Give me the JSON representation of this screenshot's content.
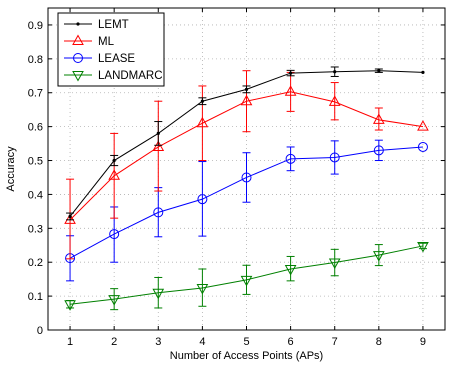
{
  "chart_data": {
    "type": "line",
    "title": "",
    "xlabel": "Number of Access Points (APs)",
    "ylabel": "Accuracy",
    "xlim": [
      0.5,
      9.5
    ],
    "ylim": [
      0,
      0.95
    ],
    "xticks": [
      1,
      2,
      3,
      4,
      5,
      6,
      7,
      8,
      9
    ],
    "yticks": [
      0,
      0.1,
      0.2,
      0.3,
      0.4,
      0.5,
      0.6,
      0.7,
      0.8,
      0.9
    ],
    "grid": true,
    "legend_position": "top-left",
    "x": [
      1,
      2,
      3,
      4,
      5,
      6,
      7,
      8,
      9
    ],
    "series": [
      {
        "name": "LEMT",
        "color": "#000000",
        "marker": "dot",
        "values": [
          0.335,
          0.5,
          0.58,
          0.675,
          0.71,
          0.758,
          0.762,
          0.765,
          0.76
        ],
        "err_low": [
          0.325,
          0.485,
          0.545,
          0.665,
          0.7,
          0.75,
          0.748,
          0.76,
          0.76
        ],
        "err_high": [
          0.345,
          0.515,
          0.615,
          0.685,
          0.72,
          0.766,
          0.776,
          0.77,
          0.76
        ]
      },
      {
        "name": "ML",
        "color": "#ff0000",
        "marker": "triangle-up",
        "values": [
          0.325,
          0.455,
          0.54,
          0.61,
          0.675,
          0.703,
          0.673,
          0.62,
          0.6
        ],
        "err_low": [
          0.21,
          0.33,
          0.41,
          0.5,
          0.585,
          0.645,
          0.62,
          0.59,
          0.6
        ],
        "err_high": [
          0.445,
          0.58,
          0.675,
          0.72,
          0.765,
          0.76,
          0.73,
          0.655,
          0.6
        ]
      },
      {
        "name": "LEASE",
        "color": "#0000ff",
        "marker": "circle",
        "values": [
          0.212,
          0.283,
          0.347,
          0.386,
          0.45,
          0.505,
          0.509,
          0.53,
          0.54
        ],
        "err_low": [
          0.145,
          0.2,
          0.275,
          0.277,
          0.377,
          0.47,
          0.46,
          0.5,
          0.54
        ],
        "err_high": [
          0.278,
          0.363,
          0.42,
          0.497,
          0.523,
          0.54,
          0.558,
          0.56,
          0.54
        ]
      },
      {
        "name": "LANDMARC",
        "color": "#008000",
        "marker": "triangle-down",
        "values": [
          0.076,
          0.091,
          0.11,
          0.124,
          0.148,
          0.18,
          0.199,
          0.221,
          0.248
        ],
        "err_low": [
          0.065,
          0.06,
          0.065,
          0.07,
          0.105,
          0.145,
          0.16,
          0.19,
          0.24
        ],
        "err_high": [
          0.087,
          0.122,
          0.155,
          0.18,
          0.191,
          0.217,
          0.238,
          0.252,
          0.256
        ]
      }
    ]
  }
}
